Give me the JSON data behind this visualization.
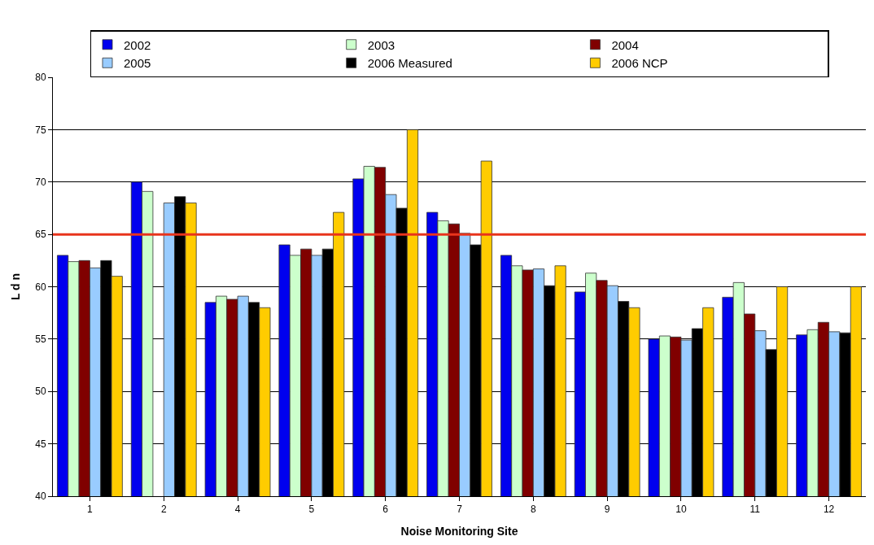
{
  "chart_data": {
    "type": "bar",
    "xlabel": "Noise Monitoring Site",
    "ylabel": "L d n",
    "categories": [
      "1",
      "2",
      "4",
      "5",
      "6",
      "7",
      "8",
      "9",
      "10",
      "11",
      "12"
    ],
    "series": [
      {
        "name": "2002",
        "color": "#0000ee",
        "values": [
          63,
          70,
          58.5,
          64,
          70.3,
          67.1,
          63,
          59.5,
          55,
          59,
          55.4
        ]
      },
      {
        "name": "2003",
        "color": "#ccffcc",
        "values": [
          62.4,
          69.1,
          59.1,
          63,
          71.5,
          66.3,
          62,
          61.3,
          55.3,
          60.4,
          55.9
        ]
      },
      {
        "name": "2004",
        "color": "#800000",
        "values": [
          62.5,
          null,
          58.8,
          63.6,
          71.4,
          66,
          61.6,
          60.6,
          55.2,
          57.4,
          56.6
        ]
      },
      {
        "name": "2005",
        "color": "#99ccff",
        "values": [
          61.8,
          68,
          59.1,
          63,
          68.8,
          65.1,
          61.7,
          60.1,
          54.9,
          55.8,
          55.7
        ]
      },
      {
        "name": "2006 Measured",
        "color": "#000000",
        "values": [
          62.5,
          68.6,
          58.5,
          63.6,
          67.5,
          64,
          60.1,
          58.6,
          56,
          54,
          55.6
        ]
      },
      {
        "name": "2006 NCP",
        "color": "#ffcc00",
        "values": [
          61,
          68,
          58,
          67.1,
          75,
          72,
          62,
          58,
          58,
          60,
          60
        ]
      }
    ],
    "ylim": [
      40,
      80
    ],
    "yticks": [
      40,
      45,
      50,
      55,
      60,
      65,
      70,
      75,
      80
    ],
    "grid": "y",
    "legend": "top",
    "ref_lines": [
      {
        "axis": "y",
        "value": 65,
        "color": "#e8341c",
        "line_style": "solid"
      }
    ]
  }
}
